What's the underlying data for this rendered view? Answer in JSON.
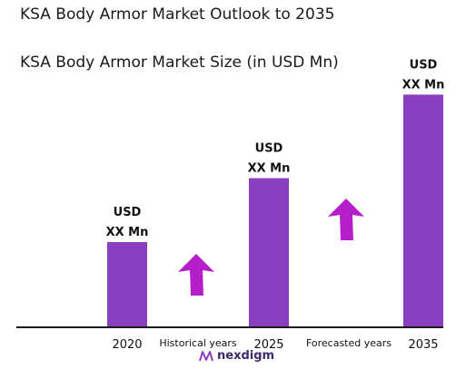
{
  "chart_data": {
    "type": "bar",
    "title": "KSA Body Armor Market Outlook to 2035",
    "subtitle": "KSA Body Armor Market Size (in USD Mn)",
    "categories": [
      "2020",
      "2025",
      "2035"
    ],
    "values": [
      1,
      1.75,
      2.73
    ],
    "data_labels": [
      [
        "USD",
        "XX Mn"
      ],
      [
        "USD",
        "XX Mn"
      ],
      [
        "USD",
        "XX Mn"
      ]
    ],
    "period_labels": [
      "Historical years",
      "Forecasted years"
    ],
    "bar_color": "#8a3fc0",
    "arrow_color": "#b41fc9",
    "grid": false,
    "legend": "none"
  },
  "brand": {
    "name": "nexdigm",
    "color": "#3d2a6b"
  }
}
